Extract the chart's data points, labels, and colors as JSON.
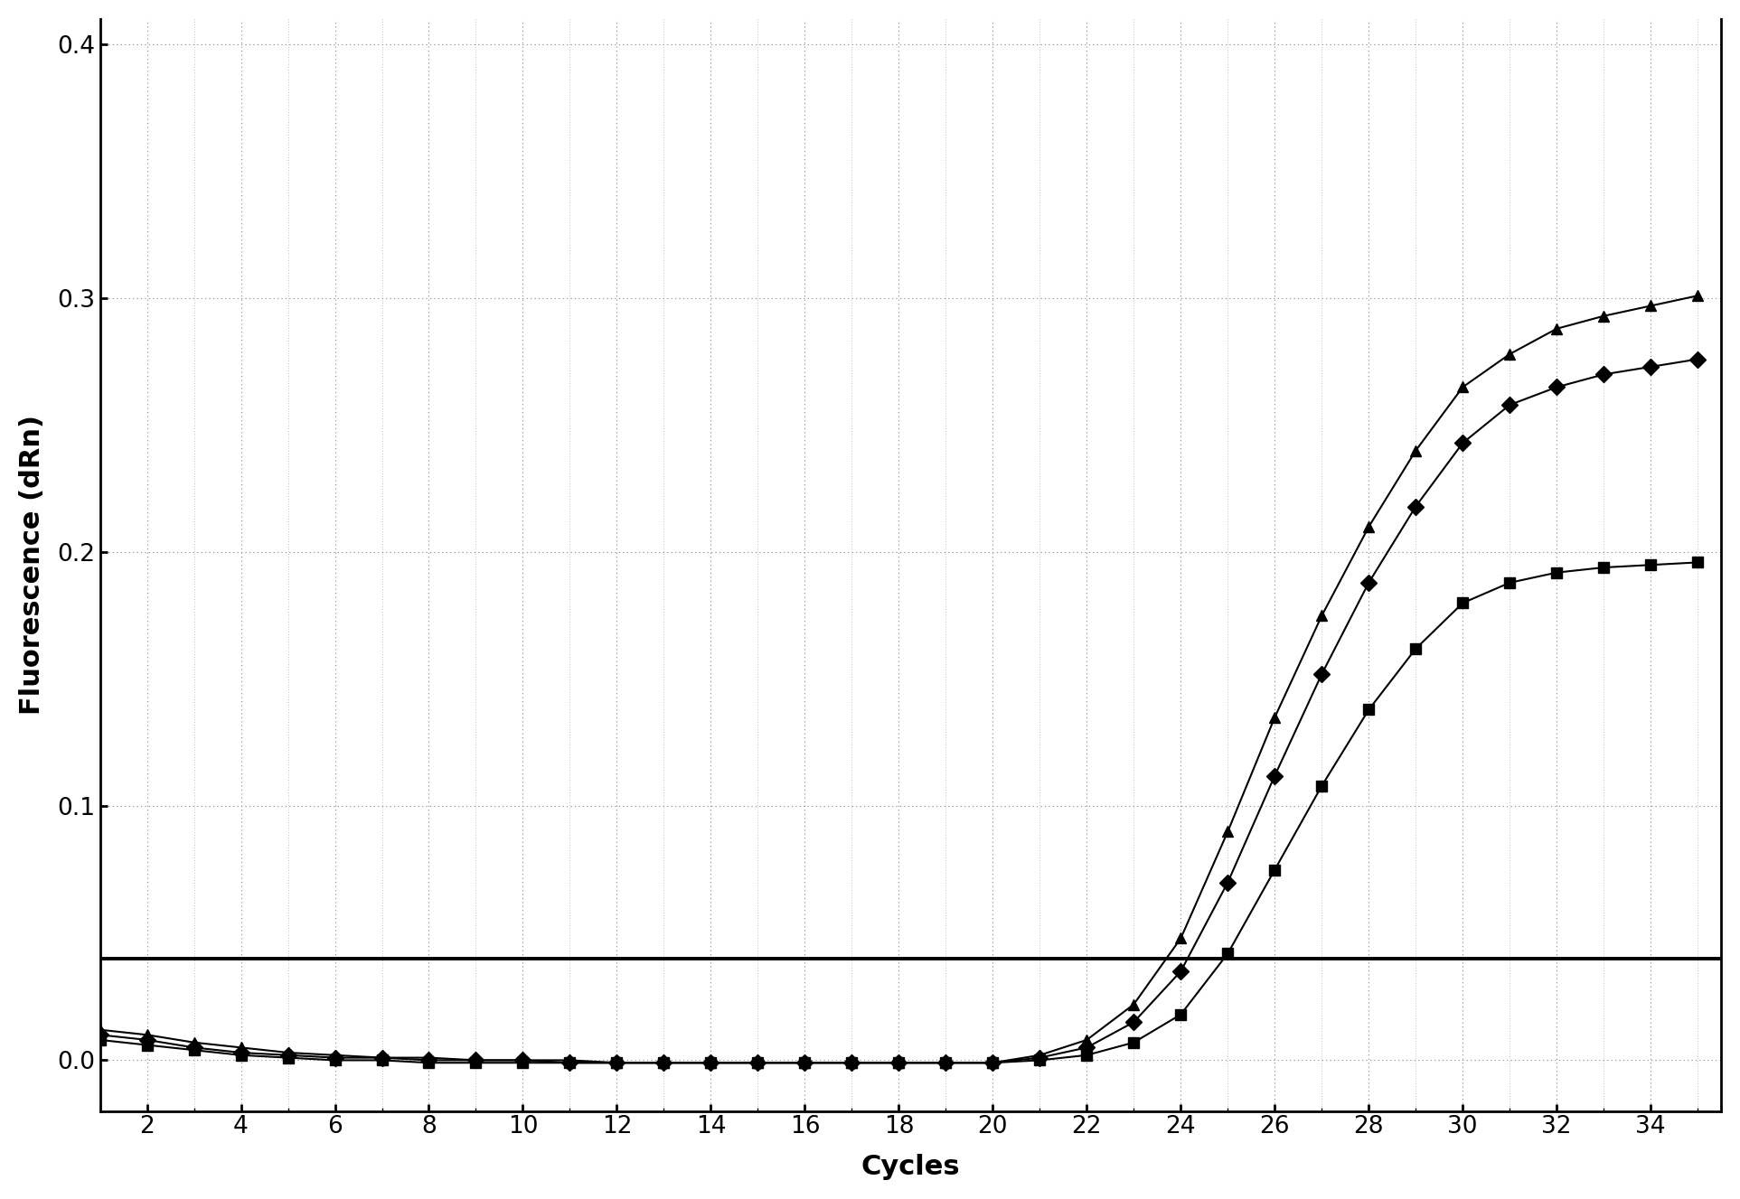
{
  "title": "",
  "xlabel": "Cycles",
  "ylabel": "Fluorescence (dRn)",
  "xlim": [
    1,
    35.5
  ],
  "ylim": [
    -0.02,
    0.41
  ],
  "yticks": [
    0.0,
    0.1,
    0.2,
    0.3,
    0.4
  ],
  "xticks": [
    2,
    4,
    6,
    8,
    10,
    12,
    14,
    16,
    18,
    20,
    22,
    24,
    26,
    28,
    30,
    32,
    34
  ],
  "threshold": 0.04,
  "background_color": "#ffffff",
  "grid_color": "#888888",
  "line_color": "#000000",
  "series": [
    {
      "marker": "^",
      "cycles": [
        1,
        2,
        3,
        4,
        5,
        6,
        7,
        8,
        9,
        10,
        11,
        12,
        13,
        14,
        15,
        16,
        17,
        18,
        19,
        20,
        21,
        22,
        23,
        24,
        25,
        26,
        27,
        28,
        29,
        30,
        31,
        32,
        33,
        34,
        35
      ],
      "values": [
        0.012,
        0.01,
        0.007,
        0.005,
        0.003,
        0.002,
        0.001,
        0.001,
        0.0,
        0.0,
        0.0,
        -0.001,
        -0.001,
        -0.001,
        -0.001,
        -0.001,
        -0.001,
        -0.001,
        -0.001,
        -0.001,
        0.002,
        0.008,
        0.022,
        0.048,
        0.09,
        0.135,
        0.175,
        0.21,
        0.24,
        0.265,
        0.278,
        0.288,
        0.293,
        0.297,
        0.301
      ]
    },
    {
      "marker": "D",
      "cycles": [
        1,
        2,
        3,
        4,
        5,
        6,
        7,
        8,
        9,
        10,
        11,
        12,
        13,
        14,
        15,
        16,
        17,
        18,
        19,
        20,
        21,
        22,
        23,
        24,
        25,
        26,
        27,
        28,
        29,
        30,
        31,
        32,
        33,
        34,
        35
      ],
      "values": [
        0.01,
        0.008,
        0.005,
        0.003,
        0.002,
        0.001,
        0.001,
        0.0,
        0.0,
        0.0,
        -0.001,
        -0.001,
        -0.001,
        -0.001,
        -0.001,
        -0.001,
        -0.001,
        -0.001,
        -0.001,
        -0.001,
        0.001,
        0.005,
        0.015,
        0.035,
        0.07,
        0.112,
        0.152,
        0.188,
        0.218,
        0.243,
        0.258,
        0.265,
        0.27,
        0.273,
        0.276
      ]
    },
    {
      "marker": "s",
      "cycles": [
        1,
        2,
        3,
        4,
        5,
        6,
        7,
        8,
        9,
        10,
        11,
        12,
        13,
        14,
        15,
        16,
        17,
        18,
        19,
        20,
        21,
        22,
        23,
        24,
        25,
        26,
        27,
        28,
        29,
        30,
        31,
        32,
        33,
        34,
        35
      ],
      "values": [
        0.008,
        0.006,
        0.004,
        0.002,
        0.001,
        0.0,
        0.0,
        -0.001,
        -0.001,
        -0.001,
        -0.001,
        -0.001,
        -0.001,
        -0.001,
        -0.001,
        -0.001,
        -0.001,
        -0.001,
        -0.001,
        -0.001,
        0.0,
        0.002,
        0.007,
        0.018,
        0.042,
        0.075,
        0.108,
        0.138,
        0.162,
        0.18,
        0.188,
        0.192,
        0.194,
        0.195,
        0.196
      ]
    }
  ]
}
